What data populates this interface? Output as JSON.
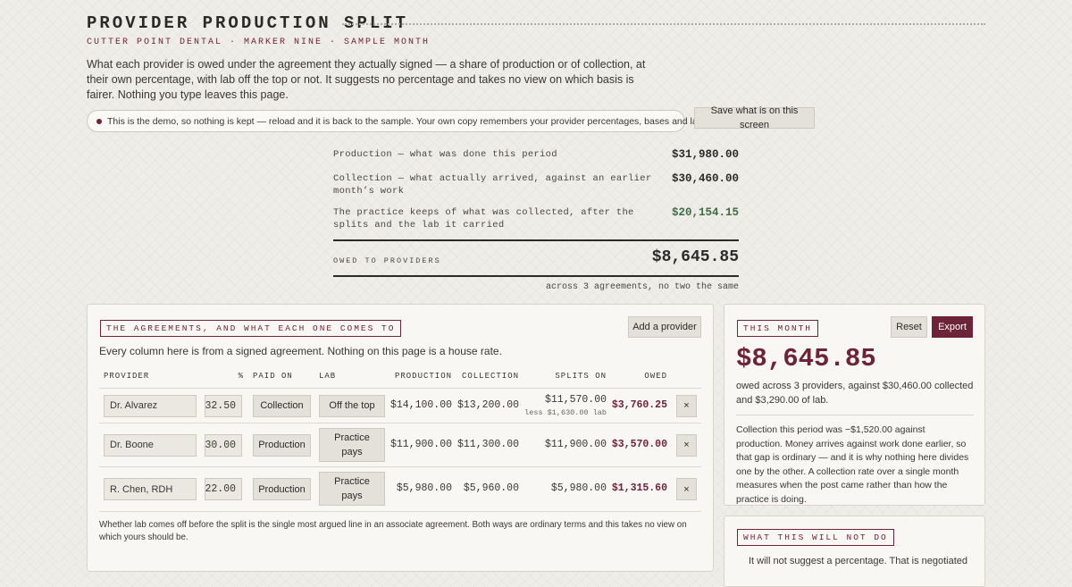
{
  "header": {
    "title": "PROVIDER PRODUCTION SPLIT",
    "subtitle": "CUTTER POINT DENTAL · MARKER NINE · SAMPLE MONTH",
    "intro": "What each provider is owed under the agreement they actually signed — a share of production or of collection, at their own percentage, with lab off the top or not. It suggests no percentage and takes no view on which basis is fairer. Nothing you type leaves this page."
  },
  "notice": {
    "text": "This is the demo, so nothing is kept — reload and it is back to the sample. Your own copy remembers your provider percentages, bases and lab rules."
  },
  "save_button": "Save what is on this screen",
  "summary": {
    "rows": [
      {
        "label": "Production — what was done this period",
        "value": "$31,980.00"
      },
      {
        "label": "Collection — what actually arrived, against an earlier month’s work",
        "value": "$30,460.00"
      },
      {
        "label": "The practice keeps of what was collected, after the splits and the lab it carried",
        "value": "$20,154.15"
      }
    ],
    "owed_label": "OWED TO PROVIDERS",
    "owed_value": "$8,645.85",
    "note": "across 3 agreements, no two the same"
  },
  "agreements": {
    "tag": "THE AGREEMENTS, AND WHAT EACH ONE COMES TO",
    "add_button": "Add a provider",
    "description": "Every column here is from a signed agreement. Nothing on this page is a house rate.",
    "columns": [
      "PROVIDER",
      "%",
      "PAID ON",
      "LAB",
      "PRODUCTION",
      "COLLECTION",
      "SPLITS ON",
      "OWED"
    ],
    "rows": [
      {
        "provider": "Dr. Alvarez",
        "percent": "32.50",
        "paid_on": "Collection",
        "lab": "Off the top",
        "production": "$14,100.00",
        "collection": "$13,200.00",
        "splits_on": "$11,570.00",
        "splits_note": "less $1,630.00 lab",
        "owed": "$3,760.25",
        "remove": "×"
      },
      {
        "provider": "Dr. Boone",
        "percent": "30.00",
        "paid_on": "Production",
        "lab": "Practice pays",
        "production": "$11,900.00",
        "collection": "$11,300.00",
        "splits_on": "$11,900.00",
        "owed": "$3,570.00",
        "remove": "×"
      },
      {
        "provider": "R. Chen, RDH",
        "percent": "22.00",
        "paid_on": "Production",
        "lab": "Practice pays",
        "production": "$5,980.00",
        "collection": "$5,960.00",
        "splits_on": "$5,980.00",
        "owed": "$1,315.60",
        "remove": "×"
      }
    ],
    "footnote": "Whether lab comes off before the split is the single most argued line in an associate agreement. Both ways are ordinary terms and this takes no view on which yours should be."
  },
  "this_month": {
    "tag": "THIS MONTH",
    "reset": "Reset",
    "export": "Export",
    "total": "$8,645.85",
    "summary": "owed across 3 providers, against $30,460.00 collected and $3,290.00 of lab.",
    "explanation": "Collection this period was −$1,520.00 against production. Money arrives against work done earlier, so that gap is ordinary — and it is why nothing here divides one by the other. A collection rate over a single month measures when the post came rather than how the practice is doing."
  },
  "will_not": {
    "tag": "WHAT THIS WILL NOT DO",
    "text": "It will not suggest a percentage. That is negotiated"
  }
}
